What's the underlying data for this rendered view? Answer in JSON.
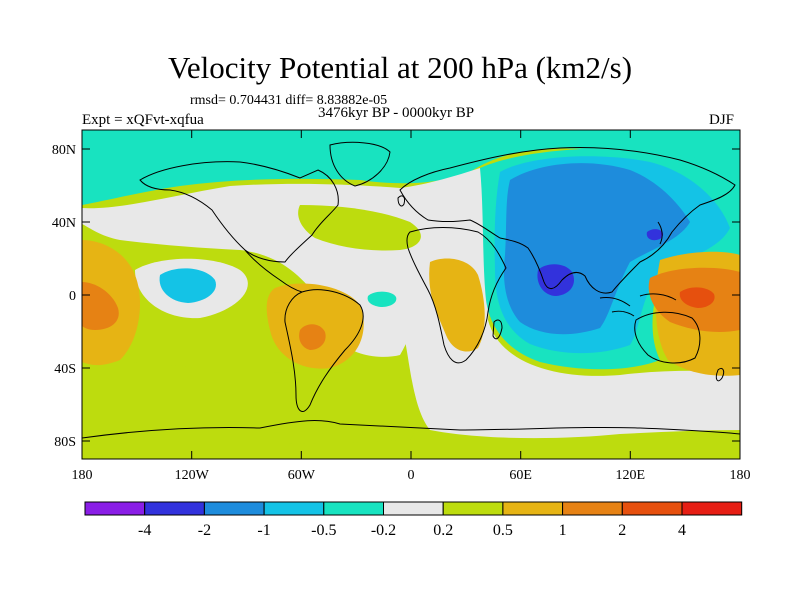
{
  "title": "Velocity Potential at 200 hPa (km2/s)",
  "stats_text": "rmsd= 0.704431 diff= 8.83882e-05",
  "expt_text": "Expt = xQFvt-xqfua",
  "period_text": "3476kyr BP - 0000kyr BP",
  "season_text": "DJF",
  "lat_labels": [
    "80N",
    "40N",
    "0",
    "40S",
    "80S"
  ],
  "lon_labels": [
    "180",
    "120W",
    "60W",
    "0",
    "60E",
    "120E",
    "180"
  ],
  "colorbar": {
    "labels": [
      "-4",
      "-2",
      "-1",
      "-0.5",
      "-0.2",
      "0.2",
      "0.5",
      "1",
      "2",
      "4"
    ],
    "colors": [
      "#8a1ee6",
      "#3232dc",
      "#1e8cdc",
      "#14c3e6",
      "#18e3c0",
      "#e8e8e8",
      "#bddc0e",
      "#e6b414",
      "#e68214",
      "#e6500e",
      "#e61e14"
    ]
  }
}
